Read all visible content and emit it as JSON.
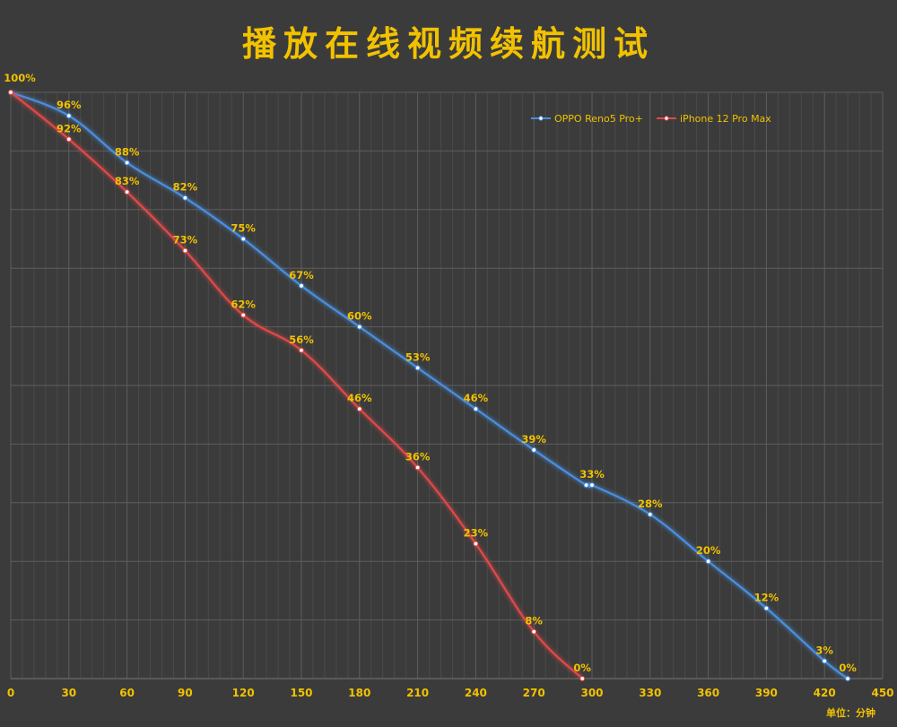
{
  "chart_data": {
    "type": "line",
    "title": "播放在线视频续航测试",
    "unit_label": "单位：分钟",
    "x_ticks": [
      0,
      30,
      60,
      90,
      120,
      150,
      180,
      210,
      240,
      270,
      300,
      330,
      360,
      390,
      420,
      450
    ],
    "xlim": [
      0,
      450
    ],
    "ylim": [
      0,
      100
    ],
    "grid": true,
    "legend_position": "top-right",
    "label_suffix": "%",
    "colors": {
      "background": "#3b3b3b",
      "grid": "#555555",
      "axis_text": "#f2c200",
      "label_text": "#f2c200"
    },
    "series": [
      {
        "name": "OPPO Reno5 Pro+",
        "color": "#4a8fe0",
        "points": [
          {
            "x": 0,
            "y": 100,
            "label": "100%"
          },
          {
            "x": 30,
            "y": 96,
            "label": "96%"
          },
          {
            "x": 60,
            "y": 88,
            "label": "88%"
          },
          {
            "x": 90,
            "y": 82,
            "label": "82%"
          },
          {
            "x": 120,
            "y": 75,
            "label": "75%"
          },
          {
            "x": 150,
            "y": 67,
            "label": "67%"
          },
          {
            "x": 180,
            "y": 60,
            "label": "60%"
          },
          {
            "x": 210,
            "y": 53,
            "label": "53%"
          },
          {
            "x": 240,
            "y": 46,
            "label": "46%"
          },
          {
            "x": 270,
            "y": 39,
            "label": "39%"
          },
          {
            "x": 297,
            "y": 33,
            "label": ""
          },
          {
            "x": 300,
            "y": 33,
            "label": "33%"
          },
          {
            "x": 330,
            "y": 28,
            "label": "28%"
          },
          {
            "x": 360,
            "y": 20,
            "label": "20%"
          },
          {
            "x": 390,
            "y": 12,
            "label": "12%"
          },
          {
            "x": 420,
            "y": 3,
            "label": "3%"
          },
          {
            "x": 432,
            "y": 0,
            "label": "0%"
          }
        ]
      },
      {
        "name": "iPhone 12 Pro Max",
        "color": "#e04848",
        "points": [
          {
            "x": 0,
            "y": 100,
            "label": ""
          },
          {
            "x": 30,
            "y": 92,
            "label": "92%"
          },
          {
            "x": 60,
            "y": 83,
            "label": "83%"
          },
          {
            "x": 90,
            "y": 73,
            "label": "73%"
          },
          {
            "x": 120,
            "y": 62,
            "label": "62%"
          },
          {
            "x": 150,
            "y": 56,
            "label": "56%"
          },
          {
            "x": 180,
            "y": 46,
            "label": "46%"
          },
          {
            "x": 210,
            "y": 36,
            "label": "36%"
          },
          {
            "x": 240,
            "y": 23,
            "label": "23%"
          },
          {
            "x": 270,
            "y": 8,
            "label": "8%"
          },
          {
            "x": 295,
            "y": 0,
            "label": "0%"
          }
        ]
      }
    ]
  }
}
